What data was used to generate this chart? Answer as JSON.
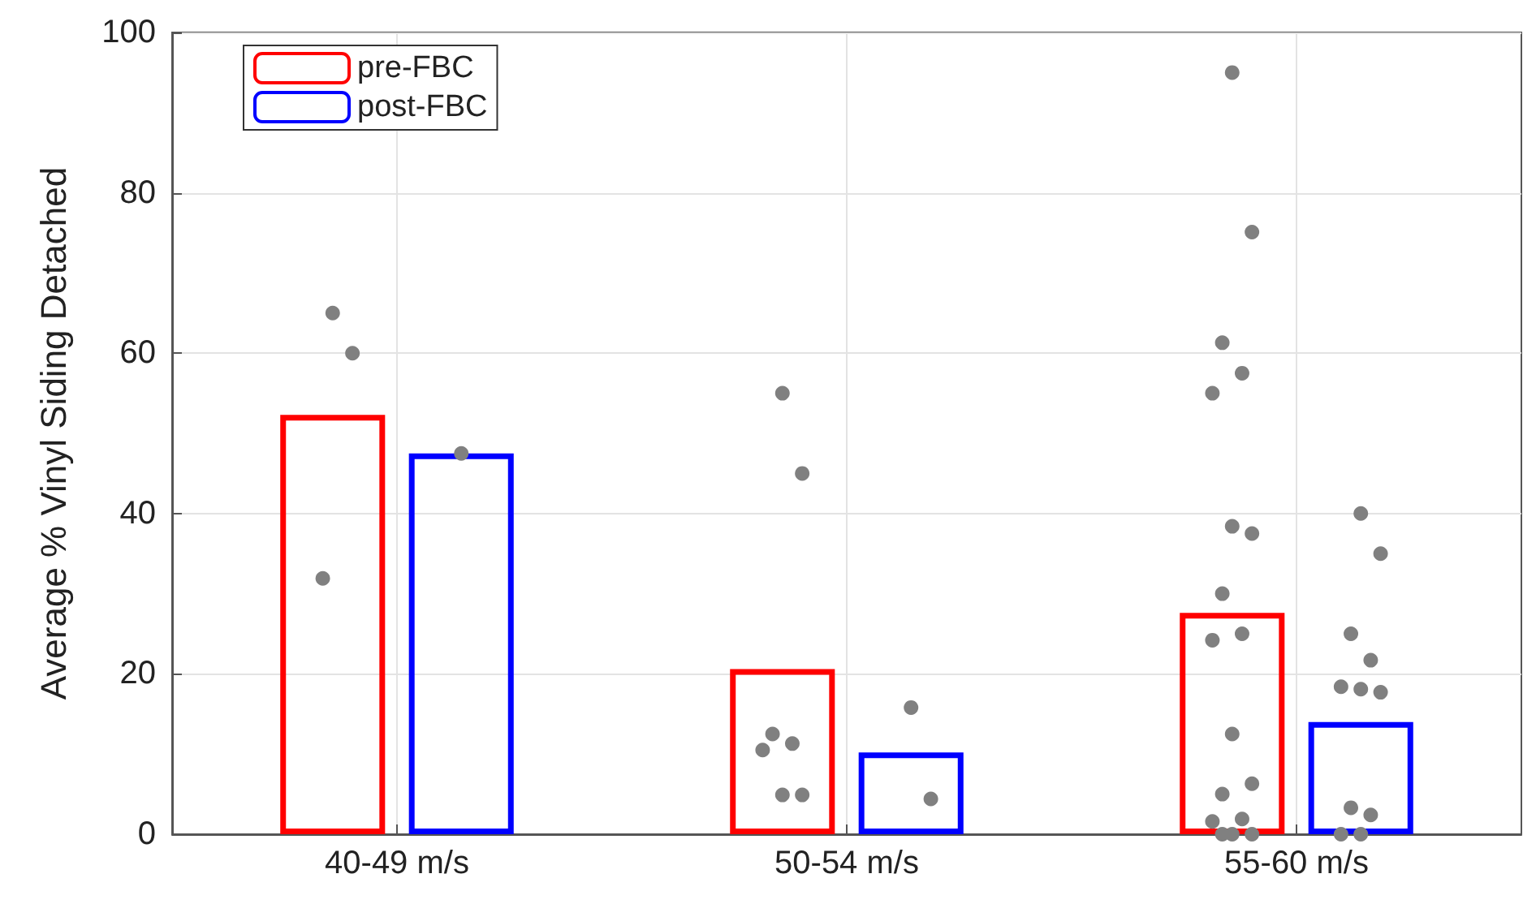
{
  "chart_data": {
    "type": "bar",
    "ylabel": "Average % Vinyl Siding Detached",
    "categories": [
      "40-49 m/s",
      "50-54 m/s",
      "55-60 m/s"
    ],
    "series": [
      {
        "name": "pre-FBC",
        "color": "#ff0000",
        "values": [
          52.3,
          20.6,
          27.6
        ]
      },
      {
        "name": "post-FBC",
        "color": "#0000ff",
        "values": [
          47.5,
          10.2,
          14.0
        ]
      },
      {
        "type": "scatter",
        "color": "#808080",
        "x": [
          "40-49 m/s",
          "40-49 m/s",
          "40-49 m/s",
          "50-54 m/s",
          "50-54 m/s",
          "50-54 m/s",
          "50-54 m/s",
          "50-54 m/s",
          "50-54 m/s",
          "50-54 m/s",
          "55-60 m/s",
          "55-60 m/s",
          "55-60 m/s",
          "55-60 m/s",
          "55-60 m/s",
          "55-60 m/s",
          "55-60 m/s",
          "55-60 m/s",
          "55-60 m/s",
          "55-60 m/s",
          "55-60 m/s",
          "55-60 m/s",
          "55-60 m/s",
          "55-60 m/s",
          "55-60 m/s",
          "55-60 m/s",
          "55-60 m/s",
          "55-60 m/s"
        ],
        "values": [
          65.0,
          60.0,
          31.9,
          55.0,
          45.0,
          12.5,
          11.3,
          10.5,
          4.9,
          4.9,
          95.0,
          75.1,
          61.3,
          57.5,
          55.0,
          38.4,
          37.5,
          30.0,
          25.0,
          24.2,
          12.5,
          6.3,
          5.0,
          1.9,
          1.6,
          0,
          0,
          0
        ]
      },
      {
        "type": "scatter",
        "color": "#808080",
        "x": [
          "40-49 m/s",
          "50-54 m/s",
          "50-54 m/s",
          "55-60 m/s",
          "55-60 m/s",
          "55-60 m/s",
          "55-60 m/s",
          "55-60 m/s",
          "55-60 m/s",
          "55-60 m/s",
          "55-60 m/s",
          "55-60 m/s",
          "55-60 m/s",
          "55-60 m/s"
        ],
        "values": [
          47.5,
          15.8,
          4.4,
          40.0,
          35.0,
          25.0,
          21.7,
          18.4,
          18.1,
          17.7,
          3.3,
          2.4,
          0,
          0
        ]
      }
    ],
    "ylim": [
      0,
      100
    ],
    "yticks": [
      0,
      20,
      40,
      60,
      80,
      100
    ],
    "grid": true,
    "legend": "top left",
    "marker": "circle"
  }
}
